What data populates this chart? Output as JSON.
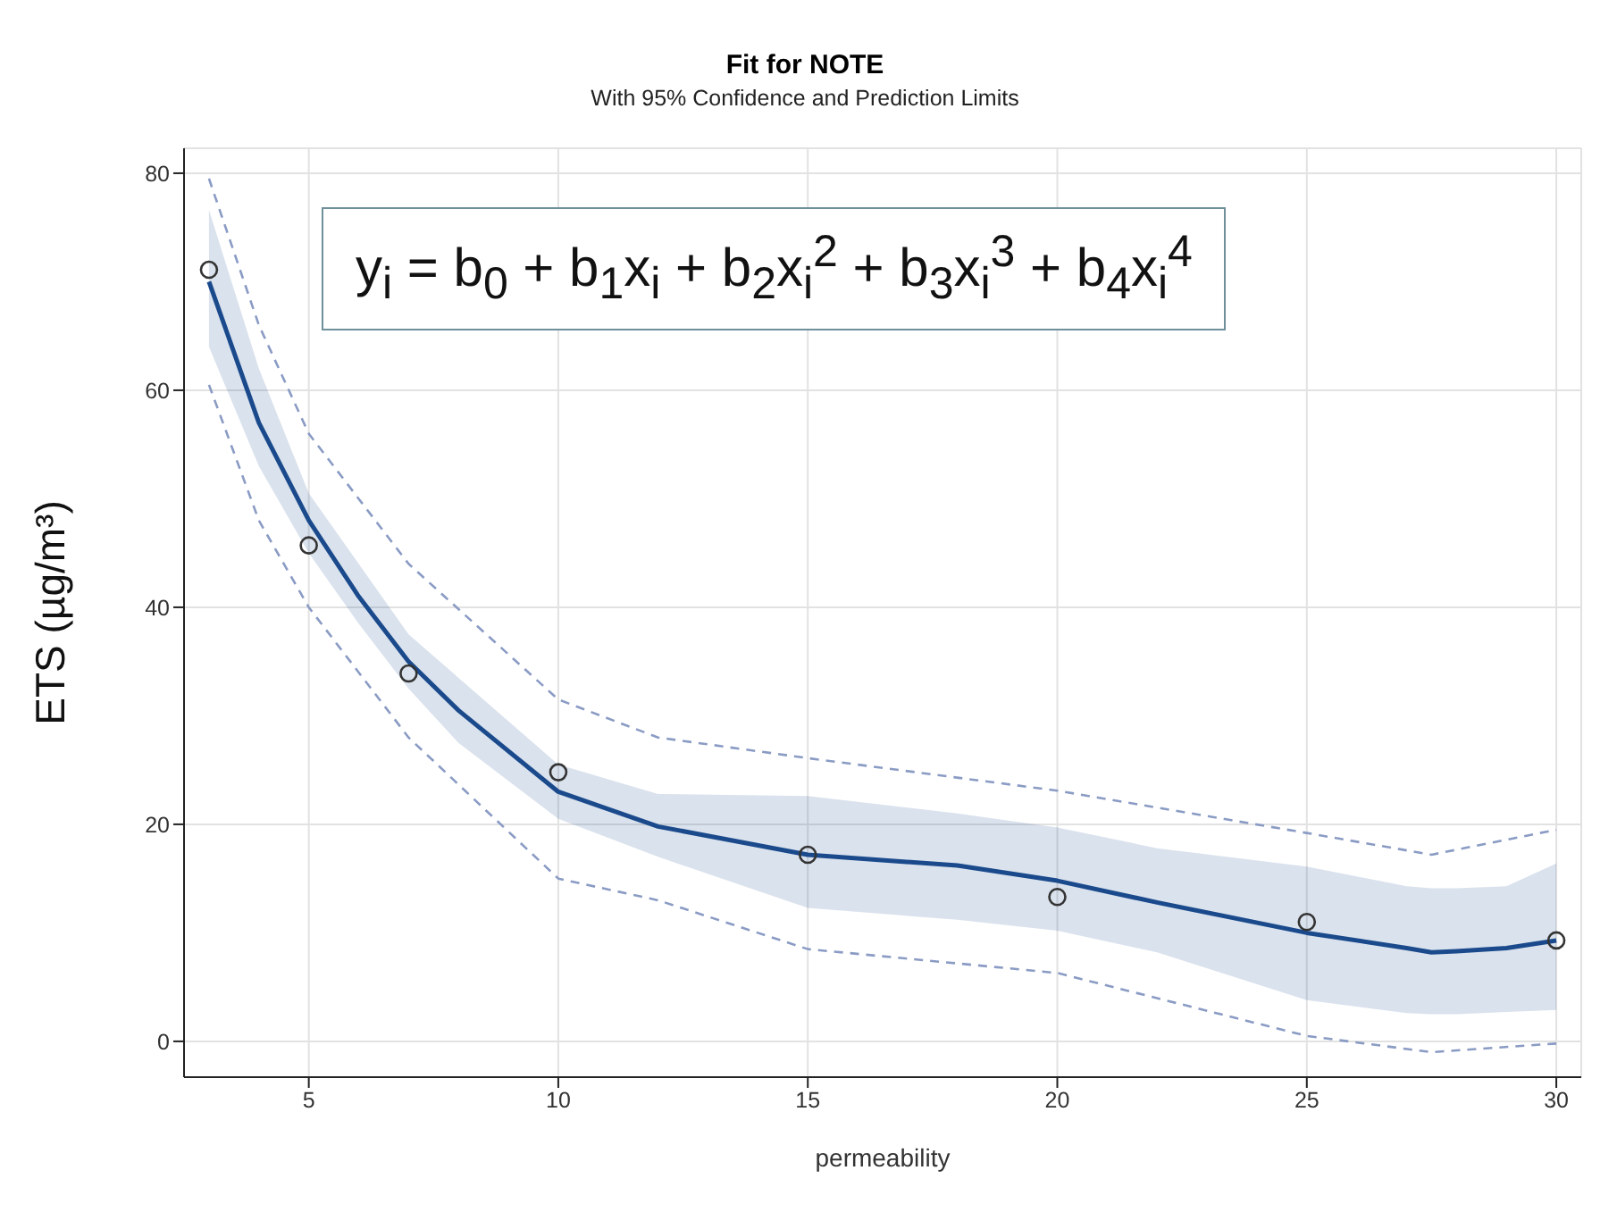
{
  "chart_data": {
    "type": "line",
    "title": "Fit for NOTE",
    "subtitle": "With 95% Confidence and Prediction Limits",
    "xlabel": "permeability",
    "ylabel": "ETS (µg/m³)",
    "annotations": [
      "y$_{i}$ = b$_{0}$ + b$_{1}$x$_{i}$ + b$_{2}$x$_{i}$$^{2}$ + b$_{3}$x$_{i}$$^{3}$ + b$_{4}$x$_{i}$$^{4}$"
    ],
    "xlim": [
      2.5,
      30.5
    ],
    "xticks": [
      5,
      10,
      15,
      20,
      25,
      30
    ],
    "ylim": [
      -3.3,
      82.3
    ],
    "yticks": [
      0,
      20,
      40,
      60,
      80
    ],
    "grid": true,
    "series": [
      {
        "color": "#1a4a8c",
        "marker": "none",
        "line_style": "solid",
        "x": [
          3,
          4,
          5,
          6,
          7,
          8,
          10,
          12,
          15,
          18,
          20,
          22,
          25,
          27,
          27.5,
          28,
          29,
          30
        ],
        "values": [
          70,
          57,
          48,
          41,
          35,
          30.5,
          23,
          19.8,
          17.2,
          16.2,
          14.8,
          12.8,
          10,
          8.6,
          8.2,
          8.3,
          8.6,
          9.3
        ],
        "lower": [
          64,
          53,
          45,
          38.5,
          32.5,
          27.5,
          20.5,
          17,
          12.3,
          11.2,
          10.2,
          8.2,
          3.8,
          2.6,
          2.5,
          2.5,
          2.7,
          2.9
        ],
        "upper": [
          76.6,
          62,
          50.5,
          44,
          37.5,
          33.5,
          25.5,
          22.8,
          22.6,
          21,
          19.7,
          17.8,
          16.1,
          14.3,
          14.1,
          14.1,
          14.3,
          16.4
        ]
      },
      {
        "color": "#8a9bc4",
        "marker": "none",
        "line_style": "dashed",
        "x": [
          3,
          4,
          5,
          7,
          10,
          12,
          15,
          20,
          25,
          27.5,
          30
        ],
        "values": [
          79.5,
          66,
          56,
          44,
          31.5,
          28,
          26.1,
          23.1,
          19.2,
          17.2,
          19.5
        ]
      },
      {
        "color": "#8a9bc4",
        "marker": "none",
        "line_style": "dashed",
        "x": [
          3,
          4,
          5,
          7,
          10,
          12,
          15,
          20,
          25,
          27.5,
          30
        ],
        "values": [
          60.5,
          48,
          40,
          28,
          15,
          13,
          8.5,
          6.3,
          0.5,
          -1,
          -0.2
        ]
      },
      {
        "type": "scatter",
        "color": "#333333",
        "marker": "circle",
        "x": [
          3,
          5,
          7,
          10,
          15,
          20,
          25,
          30
        ],
        "values": [
          71.1,
          45.7,
          33.9,
          24.8,
          17.2,
          13.3,
          11,
          9.3
        ]
      }
    ]
  }
}
